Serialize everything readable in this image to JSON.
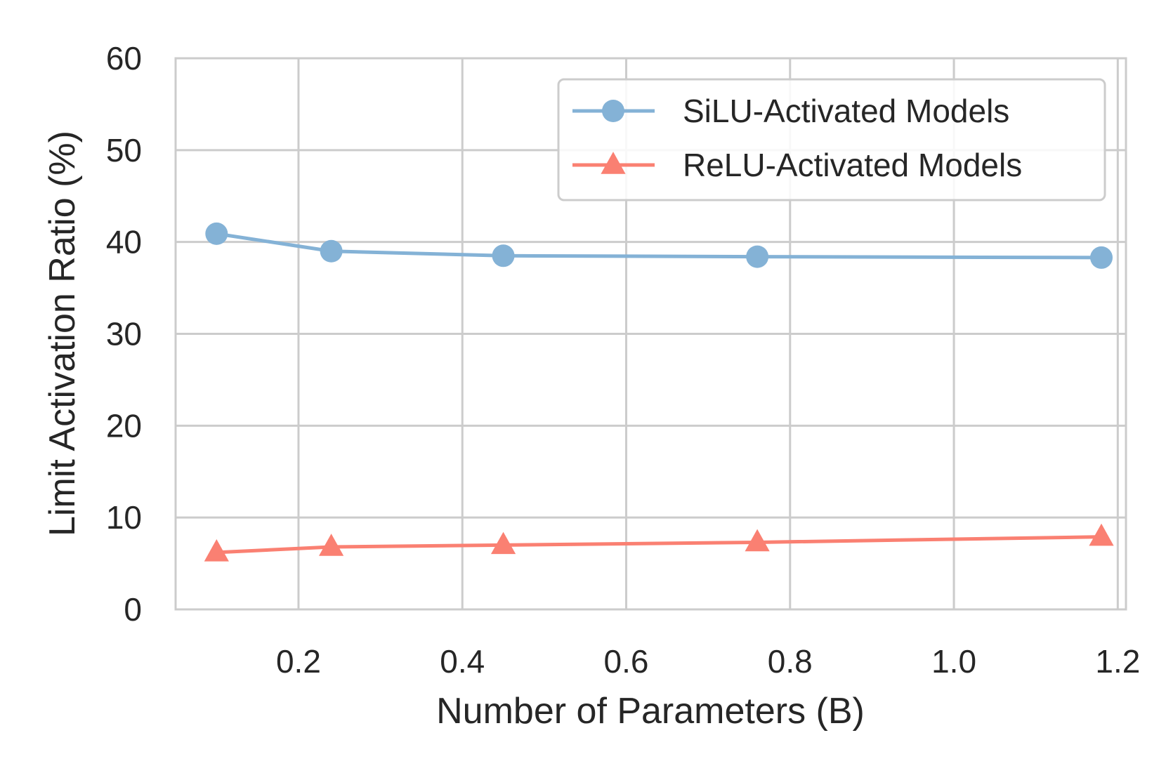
{
  "chart_data": {
    "type": "line",
    "title": "",
    "xlabel": "Number of Parameters (B)",
    "ylabel": "Limit Activation Ratio (%)",
    "xlim": [
      0.05,
      1.21
    ],
    "ylim": [
      0,
      60
    ],
    "xticks": [
      0.2,
      0.4,
      0.6,
      0.8,
      1.0,
      1.2
    ],
    "xtick_labels": [
      "0.2",
      "0.4",
      "0.6",
      "0.8",
      "1.0",
      "1.2"
    ],
    "yticks": [
      0,
      10,
      20,
      30,
      40,
      50,
      60
    ],
    "ytick_labels": [
      "0",
      "10",
      "20",
      "30",
      "40",
      "50",
      "60"
    ],
    "grid": true,
    "legend_position": "top-right",
    "series": [
      {
        "name": "SiLU-Activated Models",
        "color": "#84b2d6",
        "marker": "circle",
        "x": [
          0.1,
          0.24,
          0.45,
          0.76,
          1.18
        ],
        "y": [
          40.9,
          39.0,
          38.5,
          38.4,
          38.3
        ]
      },
      {
        "name": "ReLU-Activated Models",
        "color": "#fa8072",
        "marker": "triangle",
        "x": [
          0.1,
          0.24,
          0.45,
          0.76,
          1.18
        ],
        "y": [
          6.2,
          6.8,
          7.0,
          7.3,
          7.9
        ]
      }
    ]
  }
}
